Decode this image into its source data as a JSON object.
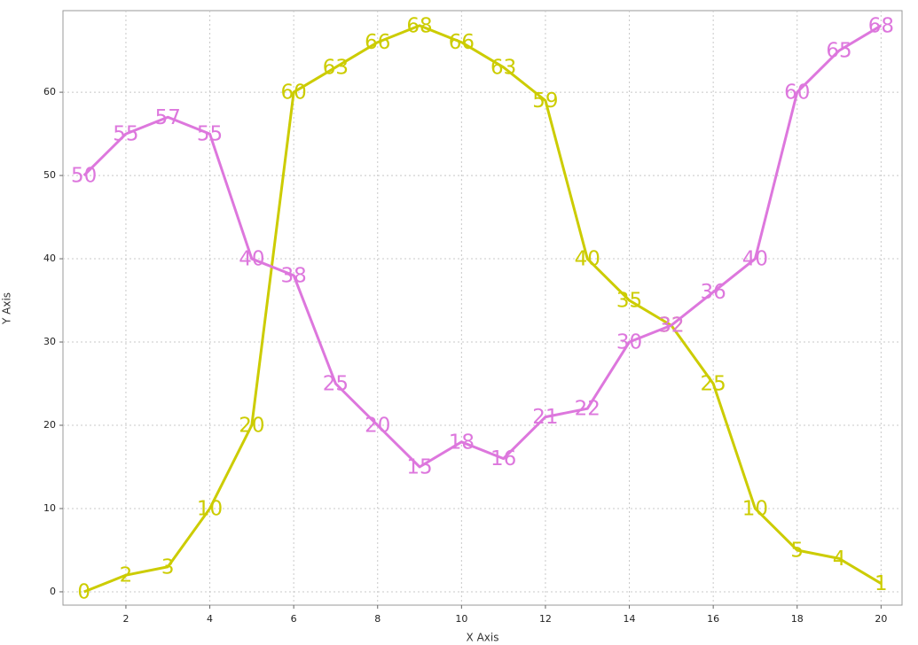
{
  "chart_data": {
    "type": "line",
    "x_label": "X Axis",
    "y_label": "Y Axis",
    "x": [
      1,
      2,
      3,
      4,
      5,
      6,
      7,
      8,
      9,
      10,
      11,
      12,
      13,
      14,
      15,
      16,
      17,
      18,
      19,
      20
    ],
    "series": [
      {
        "color": "#cccc00",
        "values": [
          0,
          2,
          3,
          10,
          20,
          60,
          63,
          66,
          68,
          66,
          63,
          59,
          40,
          35,
          32,
          25,
          10,
          5,
          4,
          1
        ]
      },
      {
        "color": "#dd77dd",
        "values": [
          50,
          55,
          57,
          55,
          40,
          38,
          25,
          20,
          15,
          18,
          16,
          21,
          22,
          30,
          32,
          36,
          40,
          60,
          65,
          68
        ]
      }
    ],
    "xlim": [
      0.5,
      20.5
    ],
    "ylim": [
      -1.6,
      69.8
    ],
    "xticks": [
      2,
      4,
      6,
      8,
      10,
      12,
      14,
      16,
      18,
      20
    ],
    "yticks": [
      0,
      10,
      20,
      30,
      40,
      50,
      60
    ],
    "grid": true
  }
}
